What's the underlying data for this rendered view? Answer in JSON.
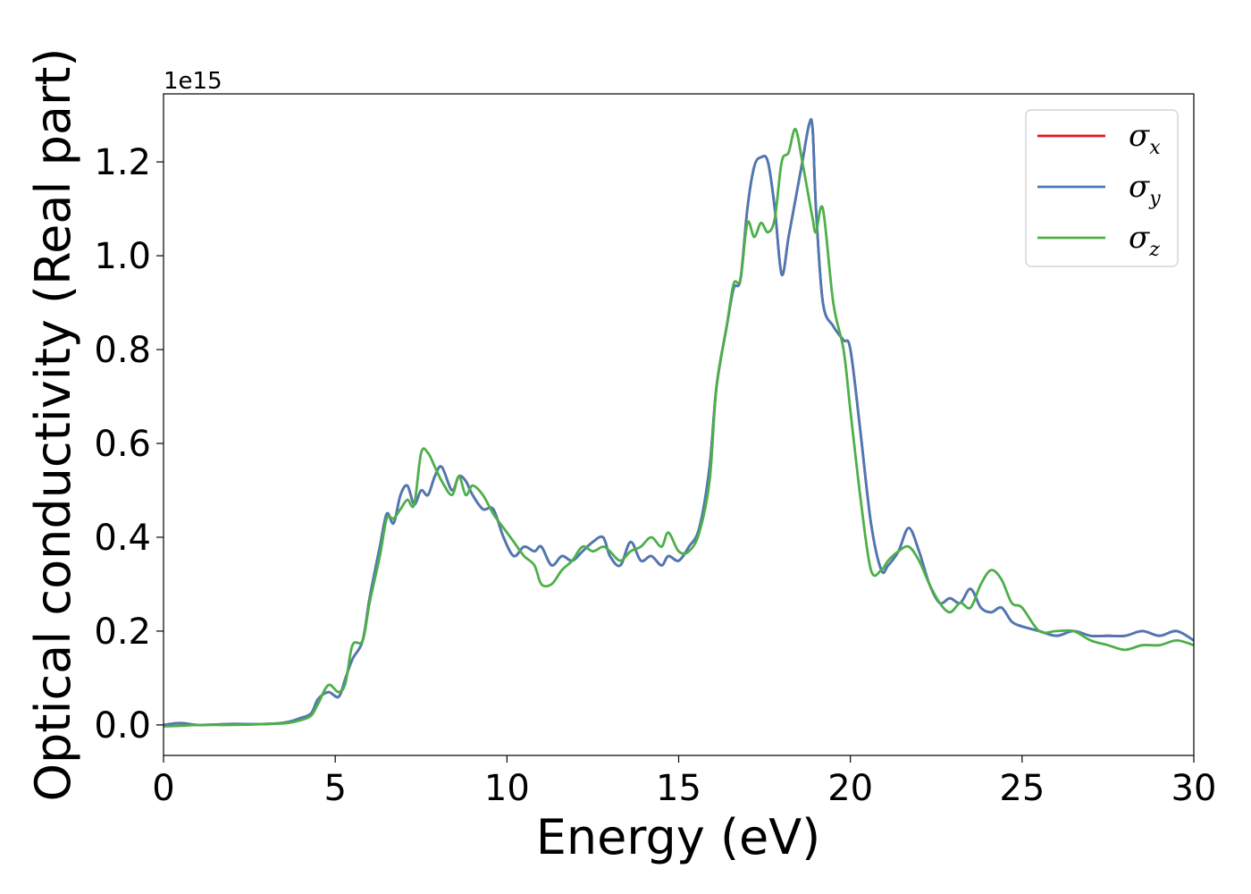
{
  "chart_data": {
    "type": "line",
    "title": "",
    "xlabel": "Energy (eV)",
    "ylabel": "Optical conductivity (Real part)",
    "y_offset_label": "1e15",
    "xlim": [
      0,
      30
    ],
    "ylim": [
      -0.065,
      1.345
    ],
    "y_scale_factor": 1000000000000000.0,
    "xticks": [
      0,
      5,
      10,
      15,
      20,
      25,
      30
    ],
    "xtick_labels": [
      "0",
      "5",
      "10",
      "15",
      "20",
      "25",
      "30"
    ],
    "yticks": [
      0.0,
      0.2,
      0.4,
      0.6,
      0.8,
      1.0,
      1.2
    ],
    "ytick_labels": [
      "0.0",
      "0.2",
      "0.4",
      "0.6",
      "0.8",
      "1.0",
      "1.2"
    ],
    "grid": false,
    "legend_position": "top-right",
    "series": [
      {
        "name": "σx",
        "symbol": "σ",
        "subscript": "x",
        "color": "#e41a1c",
        "x": [
          0,
          0.5,
          1,
          2,
          3,
          3.6,
          4,
          4.3,
          4.5,
          4.8,
          5.1,
          5.3,
          5.5,
          5.8,
          6.0,
          6.3,
          6.5,
          6.7,
          6.9,
          7.1,
          7.3,
          7.5,
          7.7,
          7.9,
          8.1,
          8.4,
          8.6,
          8.8,
          9.0,
          9.3,
          9.6,
          9.9,
          10.2,
          10.5,
          10.8,
          11.0,
          11.3,
          11.6,
          11.9,
          12.2,
          12.5,
          12.8,
          13.0,
          13.3,
          13.6,
          13.9,
          14.2,
          14.5,
          14.7,
          15.0,
          15.3,
          15.6,
          15.9,
          16.1,
          16.4,
          16.6,
          16.8,
          17.0,
          17.2,
          17.4,
          17.6,
          17.8,
          18.0,
          18.2,
          18.4,
          18.6,
          18.8,
          18.9,
          19.0,
          19.2,
          19.5,
          19.8,
          20.0,
          20.3,
          20.6,
          20.9,
          21.1,
          21.4,
          21.7,
          22.0,
          22.3,
          22.6,
          22.9,
          23.2,
          23.5,
          23.8,
          24.1,
          24.4,
          24.7,
          25.0,
          25.5,
          26.0,
          26.5,
          27.0,
          27.5,
          28.0,
          28.5,
          29.0,
          29.5,
          30.0
        ],
        "values": [
          0,
          0.004,
          0,
          0.002,
          0.002,
          0.006,
          0.015,
          0.025,
          0.055,
          0.07,
          0.06,
          0.1,
          0.14,
          0.18,
          0.27,
          0.38,
          0.45,
          0.43,
          0.49,
          0.51,
          0.47,
          0.5,
          0.49,
          0.53,
          0.55,
          0.5,
          0.53,
          0.52,
          0.49,
          0.46,
          0.46,
          0.4,
          0.36,
          0.38,
          0.37,
          0.38,
          0.34,
          0.36,
          0.35,
          0.37,
          0.39,
          0.4,
          0.36,
          0.34,
          0.39,
          0.35,
          0.36,
          0.34,
          0.36,
          0.35,
          0.38,
          0.42,
          0.55,
          0.72,
          0.85,
          0.93,
          0.95,
          1.1,
          1.19,
          1.21,
          1.2,
          1.1,
          0.96,
          1.04,
          1.12,
          1.2,
          1.28,
          1.27,
          1.1,
          0.9,
          0.85,
          0.82,
          0.8,
          0.62,
          0.43,
          0.33,
          0.34,
          0.37,
          0.42,
          0.37,
          0.3,
          0.26,
          0.27,
          0.26,
          0.29,
          0.25,
          0.24,
          0.25,
          0.22,
          0.21,
          0.2,
          0.19,
          0.2,
          0.19,
          0.19,
          0.19,
          0.2,
          0.19,
          0.2,
          0.18
        ]
      },
      {
        "name": "σy",
        "symbol": "σ",
        "subscript": "y",
        "color": "#4a7ab5",
        "x": [
          0,
          0.5,
          1,
          2,
          3,
          3.6,
          4,
          4.3,
          4.5,
          4.8,
          5.1,
          5.3,
          5.5,
          5.8,
          6.0,
          6.3,
          6.5,
          6.7,
          6.9,
          7.1,
          7.3,
          7.5,
          7.7,
          7.9,
          8.1,
          8.4,
          8.6,
          8.8,
          9.0,
          9.3,
          9.6,
          9.9,
          10.2,
          10.5,
          10.8,
          11.0,
          11.3,
          11.6,
          11.9,
          12.2,
          12.5,
          12.8,
          13.0,
          13.3,
          13.6,
          13.9,
          14.2,
          14.5,
          14.7,
          15.0,
          15.3,
          15.6,
          15.9,
          16.1,
          16.4,
          16.6,
          16.8,
          17.0,
          17.2,
          17.4,
          17.6,
          17.8,
          18.0,
          18.2,
          18.4,
          18.6,
          18.8,
          18.9,
          19.0,
          19.2,
          19.5,
          19.8,
          20.0,
          20.3,
          20.6,
          20.9,
          21.1,
          21.4,
          21.7,
          22.0,
          22.3,
          22.6,
          22.9,
          23.2,
          23.5,
          23.8,
          24.1,
          24.4,
          24.7,
          25.0,
          25.5,
          26.0,
          26.5,
          27.0,
          27.5,
          28.0,
          28.5,
          29.0,
          29.5,
          30.0
        ],
        "values": [
          0,
          0.004,
          0,
          0.002,
          0.002,
          0.006,
          0.015,
          0.025,
          0.055,
          0.07,
          0.06,
          0.1,
          0.14,
          0.18,
          0.27,
          0.38,
          0.45,
          0.43,
          0.49,
          0.51,
          0.47,
          0.5,
          0.49,
          0.53,
          0.55,
          0.5,
          0.53,
          0.52,
          0.49,
          0.46,
          0.46,
          0.4,
          0.36,
          0.38,
          0.37,
          0.38,
          0.34,
          0.36,
          0.35,
          0.37,
          0.39,
          0.4,
          0.36,
          0.34,
          0.39,
          0.35,
          0.36,
          0.34,
          0.36,
          0.35,
          0.38,
          0.42,
          0.55,
          0.72,
          0.85,
          0.93,
          0.95,
          1.1,
          1.19,
          1.21,
          1.2,
          1.1,
          0.96,
          1.04,
          1.12,
          1.2,
          1.28,
          1.27,
          1.1,
          0.9,
          0.85,
          0.82,
          0.8,
          0.62,
          0.43,
          0.33,
          0.34,
          0.37,
          0.42,
          0.37,
          0.3,
          0.26,
          0.27,
          0.26,
          0.29,
          0.25,
          0.24,
          0.25,
          0.22,
          0.21,
          0.2,
          0.19,
          0.2,
          0.19,
          0.19,
          0.19,
          0.2,
          0.19,
          0.2,
          0.18
        ]
      },
      {
        "name": "σz",
        "symbol": "σ",
        "subscript": "z",
        "color": "#4daf4a",
        "x": [
          0,
          0.5,
          1,
          2,
          3,
          3.6,
          4,
          4.3,
          4.5,
          4.8,
          5.1,
          5.3,
          5.5,
          5.8,
          6.0,
          6.3,
          6.5,
          6.7,
          6.9,
          7.1,
          7.3,
          7.5,
          7.7,
          7.9,
          8.1,
          8.4,
          8.6,
          8.8,
          9.0,
          9.3,
          9.6,
          9.9,
          10.2,
          10.5,
          10.8,
          11.0,
          11.3,
          11.6,
          11.9,
          12.2,
          12.5,
          12.8,
          13.0,
          13.3,
          13.6,
          13.9,
          14.2,
          14.5,
          14.7,
          15.0,
          15.3,
          15.6,
          15.9,
          16.1,
          16.4,
          16.6,
          16.8,
          17.0,
          17.2,
          17.4,
          17.6,
          17.8,
          18.0,
          18.2,
          18.4,
          18.6,
          18.8,
          18.9,
          19.0,
          19.2,
          19.5,
          19.8,
          20.0,
          20.3,
          20.6,
          20.9,
          21.1,
          21.4,
          21.7,
          22.0,
          22.3,
          22.6,
          22.9,
          23.2,
          23.5,
          23.8,
          24.1,
          24.4,
          24.7,
          25.0,
          25.5,
          26.0,
          26.5,
          27.0,
          27.5,
          28.0,
          28.5,
          29.0,
          29.5,
          30.0
        ],
        "values": [
          -0.003,
          -0.002,
          0,
          0,
          0.002,
          0.004,
          0.01,
          0.02,
          0.045,
          0.085,
          0.07,
          0.09,
          0.17,
          0.18,
          0.26,
          0.36,
          0.44,
          0.44,
          0.46,
          0.48,
          0.47,
          0.58,
          0.58,
          0.55,
          0.52,
          0.49,
          0.53,
          0.49,
          0.51,
          0.49,
          0.45,
          0.42,
          0.39,
          0.36,
          0.34,
          0.3,
          0.3,
          0.33,
          0.35,
          0.38,
          0.37,
          0.38,
          0.37,
          0.35,
          0.37,
          0.38,
          0.4,
          0.38,
          0.41,
          0.37,
          0.37,
          0.41,
          0.52,
          0.72,
          0.85,
          0.94,
          0.95,
          1.07,
          1.04,
          1.07,
          1.05,
          1.08,
          1.2,
          1.22,
          1.27,
          1.2,
          1.12,
          1.08,
          1.05,
          1.1,
          0.9,
          0.8,
          0.67,
          0.48,
          0.33,
          0.33,
          0.35,
          0.37,
          0.38,
          0.35,
          0.3,
          0.26,
          0.24,
          0.26,
          0.25,
          0.3,
          0.33,
          0.31,
          0.26,
          0.25,
          0.2,
          0.2,
          0.2,
          0.18,
          0.17,
          0.16,
          0.17,
          0.17,
          0.18,
          0.17
        ]
      }
    ]
  }
}
